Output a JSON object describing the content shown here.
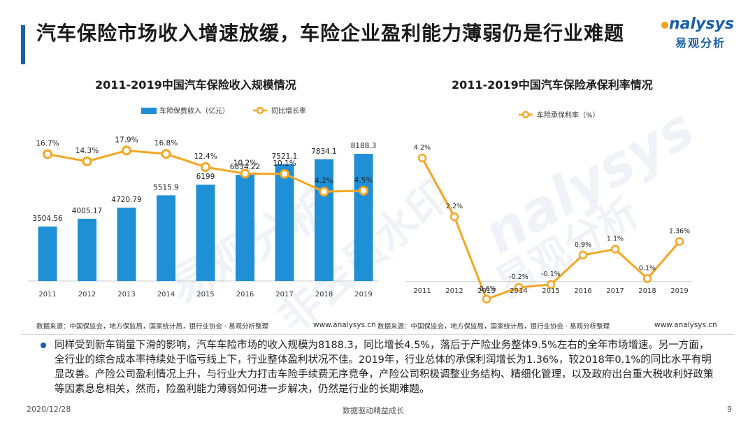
{
  "header": {
    "title": "汽车保险市场收入增速放缓，车险企业盈利能力薄弱仍是行业难题",
    "logo_en": "nalysys",
    "logo_cn": "易观分析"
  },
  "watermark": {
    "text1": "易观分析",
    "text2": "nalysys",
    "text3": "非会员水印"
  },
  "chart_data": [
    {
      "type": "bar",
      "title": "2011-2019中国汽车保险收入规模情况",
      "categories": [
        "2011",
        "2012",
        "2013",
        "2014",
        "2015",
        "2016",
        "2017",
        "2018",
        "2019"
      ],
      "series": [
        {
          "name": "车险保费收入（亿元）",
          "type": "bar",
          "values": [
            3504.56,
            4005.17,
            4720.79,
            5515.9,
            6199,
            6834.22,
            7521.1,
            7834.1,
            8188.3
          ],
          "labels": [
            "3504.56",
            "4005.17",
            "4720.79",
            "5515.9",
            "6199",
            "6834.22",
            "7521.1",
            "7834.1",
            "8188.3"
          ],
          "color": "#1f8fd6"
        },
        {
          "name": "同比增长率",
          "type": "line",
          "values": [
            16.7,
            14.3,
            17.9,
            16.8,
            12.4,
            10.2,
            10.1,
            4.2,
            4.5
          ],
          "labels": [
            "16.7%",
            "14.3%",
            "17.9%",
            "16.8%",
            "12.4%",
            "10.2%",
            "10.1%",
            "4.2%",
            "4.5%"
          ],
          "unit": "%",
          "color": "#f5a623"
        }
      ],
      "legend_position": "top",
      "grid": false
    },
    {
      "type": "line",
      "title": "2011-2019中国汽车保险承保利率情况",
      "categories": [
        "2011",
        "2012",
        "2013",
        "2014",
        "2015",
        "2016",
        "2017",
        "2018",
        "2019"
      ],
      "series": [
        {
          "name": "车险承保利率（%）",
          "values": [
            4.2,
            2.2,
            -0.6,
            -0.2,
            -0.1,
            0.9,
            1.1,
            0.1,
            1.36
          ],
          "labels": [
            "4.2%",
            "2.2%",
            "-0.6%",
            "-0.2%",
            "-0.1%",
            "0.9%",
            "1.1%",
            "0.1%",
            "1.36%"
          ],
          "unit": "%",
          "color": "#f5a623"
        }
      ],
      "legend_position": "top",
      "grid": false
    }
  ],
  "sources": {
    "left": "数据来源：中国保监会，地方保监局，国家统计局，银行业协会 · 易观分析整理",
    "right": "数据来源：中国保监会，地方保监局，国家统计局，银行业协会 · 易观分析整理",
    "url": "www.analysys.cn"
  },
  "bullet": {
    "text": "同样受到新车销量下滑的影响，汽车车险市场的收入规模为8188.3，同比增长4.5%，落后于产险业务整体9.5%左右的全年市场增速。另一方面，全行业的综合成本率持续处于临亏线上下，行业整体盈利状况不佳。2019年，行业总体的承保利润增长为1.36%，较2018年0.1%的同比水平有明显改善。产险公司盈利情况上升，与行业大力打击车险手续费无序竞争，产险公司积极调整业务结构、精细化管理，以及政府出台重大税收利好政策等因素息息相关，然而，险盈利能力薄弱如何进一步解决，仍然是行业的长期难题。"
  },
  "footer": {
    "date": "2020/12/28",
    "slogan": "数据驱动精益成长",
    "page": "9"
  }
}
